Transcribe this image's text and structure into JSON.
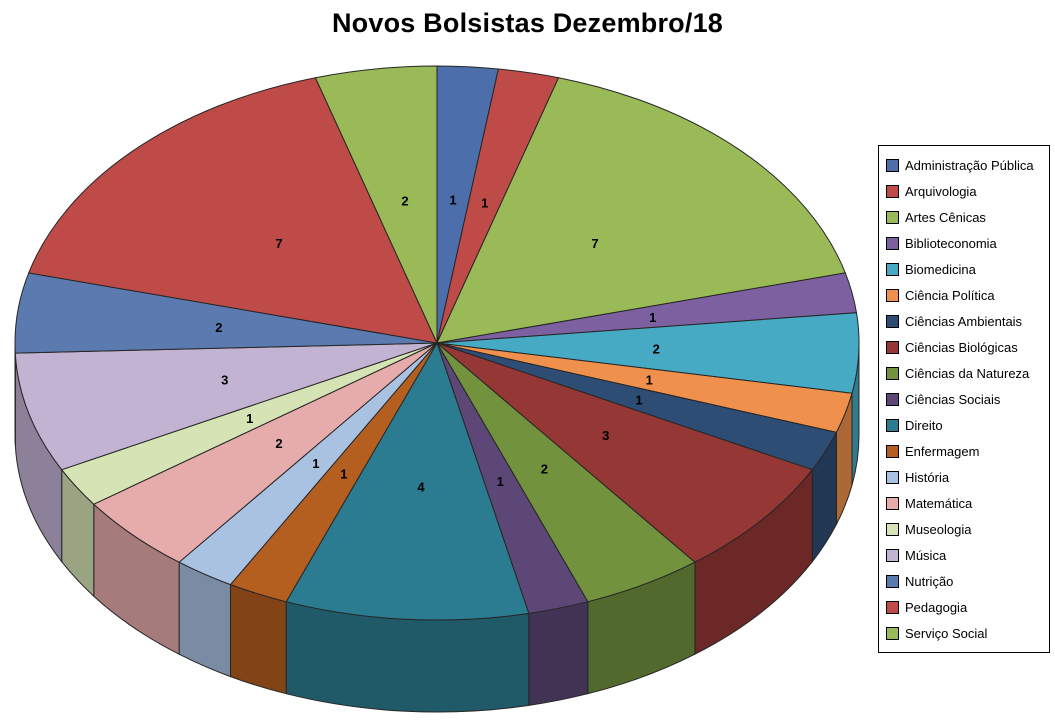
{
  "page": {
    "background": "#ffffff"
  },
  "chart_data": {
    "type": "pie",
    "effect": "3d",
    "title": "Novos Bolsistas Dezembro/18",
    "data_labels": "value",
    "legend_position": "right",
    "total": 43,
    "categories": [
      "Administração Pública",
      "Arquivologia",
      "Artes Cênicas",
      "Biblioteconomia",
      "Biomedicina",
      "Ciência Política",
      "Ciências Ambientais",
      "Ciências Biológicas",
      "Ciências da Natureza",
      "Ciências Sociais",
      "Direito",
      "Enfermagem",
      "História",
      "Matemática",
      "Museologia",
      "Música",
      "Nutrição",
      "Pedagogia",
      "Serviço Social"
    ],
    "values": [
      1,
      1,
      7,
      1,
      2,
      1,
      1,
      3,
      2,
      1,
      4,
      1,
      1,
      2,
      1,
      3,
      2,
      7,
      2
    ],
    "colors": [
      "#4C6FAC",
      "#BE4B48",
      "#9ABA58",
      "#7D60A0",
      "#46AAC5",
      "#F0904D",
      "#2E4D75",
      "#943735",
      "#72923E",
      "#5C4776",
      "#2C7C91",
      "#B45F20",
      "#A9C2E2",
      "#E6ABAB",
      "#D6E3B5",
      "#C2B3D3",
      "#5A7AB0",
      "#BE4B48",
      "#9ABA58"
    ]
  }
}
